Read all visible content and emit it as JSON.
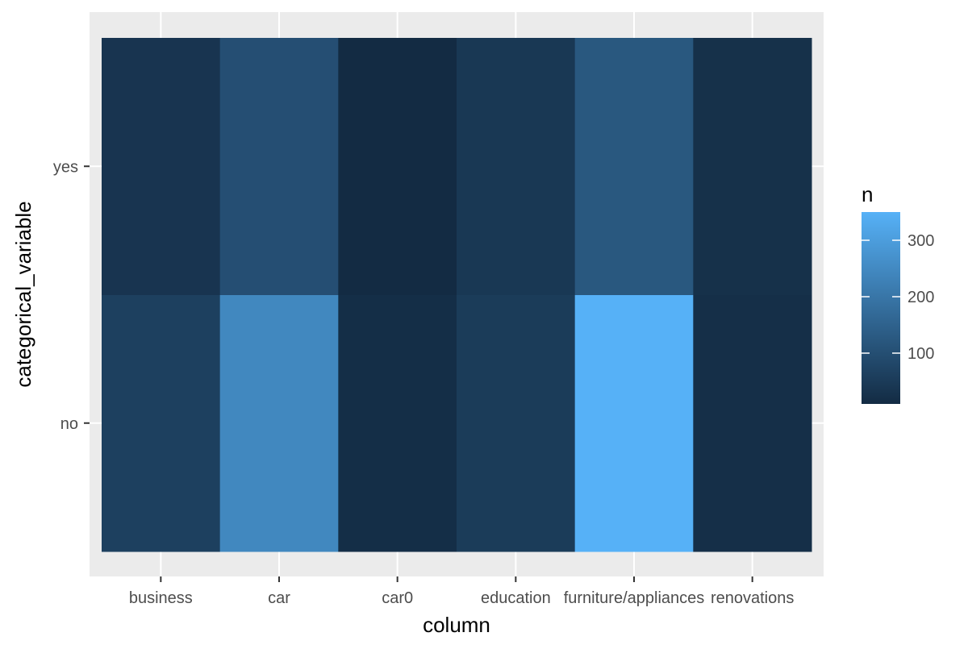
{
  "chart_data": {
    "type": "heatmap",
    "x_categories": [
      "business",
      "car",
      "car0",
      "education",
      "furniture/appliances",
      "renovations"
    ],
    "y_categories": [
      "no",
      "yes"
    ],
    "xlabel": "column",
    "ylabel": "categorical_variable",
    "cells": [
      {
        "x": "business",
        "y": "no",
        "n": 63
      },
      {
        "x": "car",
        "y": "no",
        "n": 245
      },
      {
        "x": "car0",
        "y": "no",
        "n": 17
      },
      {
        "x": "education",
        "y": "no",
        "n": 52
      },
      {
        "x": "furniture/appliances",
        "y": "no",
        "n": 350
      },
      {
        "x": "renovations",
        "y": "no",
        "n": 20
      },
      {
        "x": "business",
        "y": "yes",
        "n": 34
      },
      {
        "x": "car",
        "y": "yes",
        "n": 100
      },
      {
        "x": "car0",
        "y": "yes",
        "n": 10
      },
      {
        "x": "education",
        "y": "yes",
        "n": 42
      },
      {
        "x": "furniture/appliances",
        "y": "yes",
        "n": 123
      },
      {
        "x": "renovations",
        "y": "yes",
        "n": 24
      }
    ],
    "legend": {
      "title": "n",
      "ticks": [
        100,
        200,
        300
      ],
      "range": [
        10,
        350
      ],
      "low_color": "#132B43",
      "high_color": "#56B1F7"
    },
    "panel_background": "#ebebeb",
    "grid": true
  }
}
